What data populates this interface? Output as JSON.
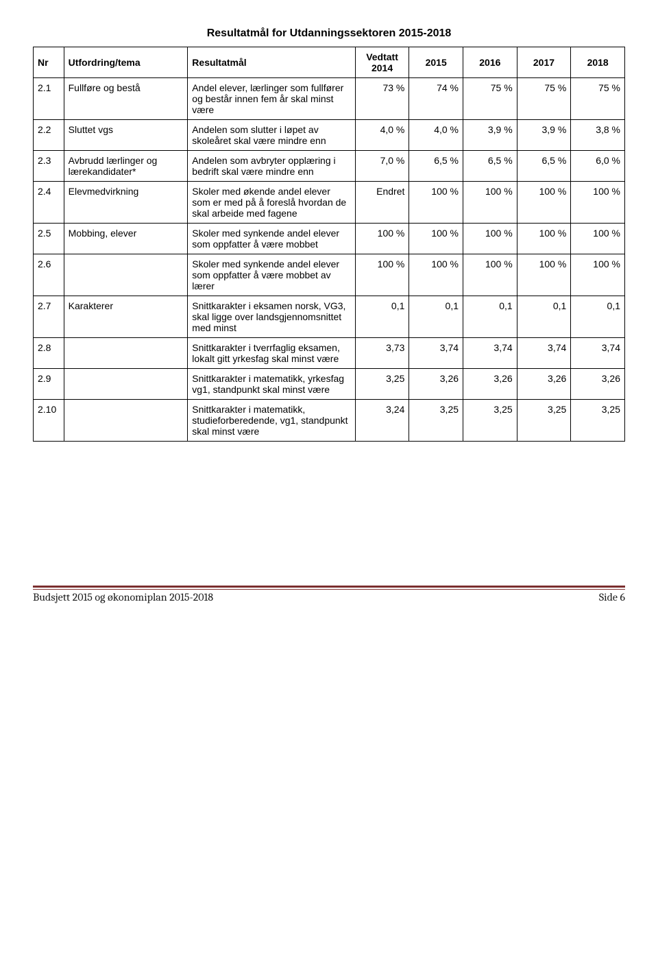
{
  "title": "Resultatmål for Utdanningssektoren 2015-2018",
  "headers": {
    "nr": "Nr",
    "utfordring": "Utfordring/tema",
    "resultatmal": "Resultatmål",
    "vedtatt": "Vedtatt 2014",
    "y2015": "2015",
    "y2016": "2016",
    "y2017": "2017",
    "y2018": "2018"
  },
  "rows": [
    {
      "nr": "2.1",
      "tema": "Fullføre og bestå",
      "mal": "Andel elever, lærlinger som fullfører og består innen fem år skal minst være",
      "v": [
        "73 %",
        "74 %",
        "75 %",
        "75 %",
        "75 %"
      ]
    },
    {
      "nr": "2.2",
      "tema": "Sluttet vgs",
      "mal": "Andelen som slutter i løpet av skoleåret skal være mindre enn",
      "v": [
        "4,0 %",
        "4,0 %",
        "3,9 %",
        "3,9 %",
        "3,8 %"
      ]
    },
    {
      "nr": "2.3",
      "tema": "Avbrudd lærlinger og lærekandidater*",
      "mal": "Andelen som avbryter opplæring i bedrift skal være mindre enn",
      "v": [
        "7,0 %",
        "6,5 %",
        "6,5 %",
        "6,5 %",
        "6,0 %"
      ]
    },
    {
      "nr": "2.4",
      "tema": "Elevmedvirkning",
      "mal": "Skoler med økende andel elever som er med på å foreslå hvordan de skal arbeide med fagene",
      "v": [
        "Endret",
        "100 %",
        "100 %",
        "100 %",
        "100 %"
      ]
    },
    {
      "nr": "2.5",
      "tema": "Mobbing, elever",
      "mal": "Skoler med synkende andel elever som oppfatter å være mobbet",
      "v": [
        "100 %",
        "100 %",
        "100 %",
        "100 %",
        "100 %"
      ]
    },
    {
      "nr": "2.6",
      "tema": "",
      "mal": "Skoler med synkende andel elever som oppfatter å være mobbet av lærer",
      "v": [
        "100 %",
        "100 %",
        "100 %",
        "100 %",
        "100 %"
      ]
    },
    {
      "nr": "2.7",
      "tema": "Karakterer",
      "mal": "Snittkarakter i eksamen norsk, VG3, skal ligge over landsgjennomsnittet med minst",
      "v": [
        "0,1",
        "0,1",
        "0,1",
        "0,1",
        "0,1"
      ]
    },
    {
      "nr": "2.8",
      "tema": "",
      "mal": "Snittkarakter i tverrfaglig eksamen, lokalt gitt yrkesfag skal minst være",
      "v": [
        "3,73",
        "3,74",
        "3,74",
        "3,74",
        "3,74"
      ]
    },
    {
      "nr": "2.9",
      "tema": "",
      "mal": "Snittkarakter i matematikk, yrkesfag vg1, standpunkt skal minst være",
      "v": [
        "3,25",
        "3,26",
        "3,26",
        "3,26",
        "3,26"
      ]
    },
    {
      "nr": "2.10",
      "tema": "",
      "mal": "Snittkarakter i matematikk, studieforberedende, vg1, standpunkt skal minst være",
      "v": [
        "3,24",
        "3,25",
        "3,25",
        "3,25",
        "3,25"
      ]
    }
  ],
  "footer": {
    "left": "Budsjett 2015 og økonomiplan 2015-2018",
    "right": "Side 6"
  }
}
